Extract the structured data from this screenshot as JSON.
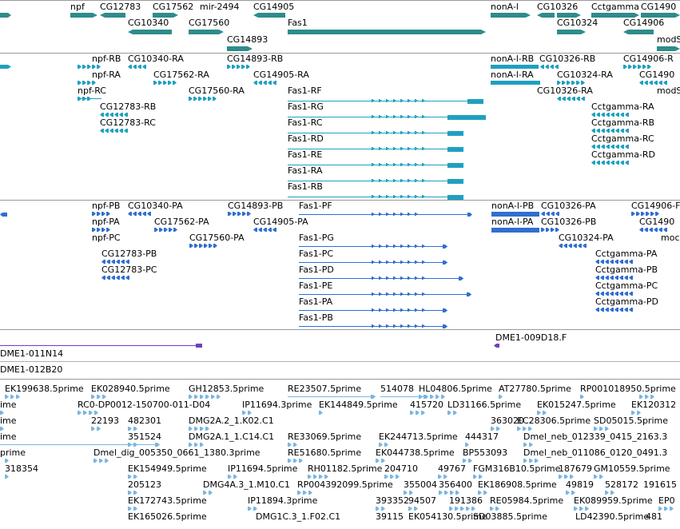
{
  "colors": {
    "gene": "#2e8c8a",
    "transcript_rna": "#1fa0c0",
    "protein": "#2f6fd0",
    "clone": "#7040c0",
    "est": "#7ab6e2",
    "separator": "#9a9a9a"
  },
  "gene_track": {
    "labels": [
      "npf",
      "CG12783",
      "CG17562",
      "mir-2494",
      "CG14905",
      "CG10340",
      "CG17560",
      "CG14893",
      "Fas1",
      "nonA-l",
      "CG10326",
      "Cctgamma",
      "CG1490",
      "CG10324",
      "CG14906",
      "modS"
    ]
  },
  "transcript_track": {
    "labels": [
      "npf-RB",
      "CG10340-RA",
      "CG14893-RB",
      "npf-RA",
      "CG17562-RA",
      "CG14905-RA",
      "npf-RC",
      "CG17560-RA",
      "CG12783-RB",
      "CG12783-RC",
      "Fas1-RF",
      "Fas1-RG",
      "Fas1-RC",
      "Fas1-RD",
      "Fas1-RE",
      "Fas1-RA",
      "Fas1-RB",
      "nonA-l-RB",
      "CG10326-RB",
      "CG14906-R",
      "nonA-l-RA",
      "CG10324-RA",
      "CG1490",
      "CG10326-RA",
      "modS",
      "Cctgamma-RA",
      "Cctgamma-RB",
      "Cctgamma-RC",
      "Cctgamma-RD"
    ]
  },
  "protein_track": {
    "labels": [
      "npf-PB",
      "CG10340-PA",
      "CG14893-PB",
      "Fas1-PF",
      "npf-PA",
      "CG17562-PA",
      "CG14905-PA",
      "npf-PC",
      "CG17560-PA",
      "CG12783-PB",
      "CG12783-PC",
      "Fas1-PG",
      "Fas1-PC",
      "Fas1-PD",
      "Fas1-PE",
      "Fas1-PA",
      "Fas1-PB",
      "nonA-l-PB",
      "CG10326-PA",
      "CG14906-F",
      "nonA-l-PA",
      "CG10326-PB",
      "CG1490",
      "CG10324-PA",
      "moc",
      "Cctgamma-PA",
      "Cctgamma-PB",
      "Cctgamma-PC",
      "Cctgamma-PD"
    ]
  },
  "clone_track": {
    "labels": [
      "DME1-011N14",
      "DME1-009D18.F",
      "DME1-012B20"
    ]
  },
  "est_track": {
    "labels": [
      "EK199638.5prime",
      "EK028940.5prime",
      "GH12853.5prime",
      "RE23507.5prime",
      "514078",
      "HL04806.5prime",
      "AT27780.5prime",
      "RP001018950.5prime",
      "ime",
      "RC0-DP0012-150700-011-D04",
      "IP11694.3prime",
      "EK144849.5prime",
      "415720",
      "LD31166.5prime",
      "EK015247.5prime",
      "EK120312",
      "ime",
      "22193",
      "482301",
      "DMG2A.2_1.K02.C1",
      "363020",
      "EC28306.5prime",
      "SD05015.5prime",
      "ime",
      "351524",
      "DMG2A.1_1.C14.C1",
      "RE33069.5prime",
      "EK244713.5prime",
      "444317",
      "Dmel_neb_012339_0415_2163.3",
      "prime",
      "Dmel_dig_005350_0661_1380.3prime",
      "RE51680.5prime",
      "EK044738.5prime",
      "BP553093",
      "Dmel_neb_011086_0120_0491.3",
      "318354",
      "EK154949.5prime",
      "IP11694.5prime",
      "RH01182.5prime",
      "204710",
      "49767",
      "FGM316B10.5prime",
      "187679",
      "GM10559.5prime",
      "205123",
      "DMG4A.3_1.M10.C1",
      "RP004392099.5prime",
      "355004",
      "356400",
      "EK186908.5prime",
      "49819",
      "528172",
      "191615",
      "EK172743.5prime",
      "IP11894.3prime",
      "393352",
      "94507",
      "191386",
      "RE05984.5prime",
      "EK089959.5prime",
      "EP0",
      "EK165026.5prime",
      "DMG1C.3_1.F02.C1",
      "39115",
      "EK054130.5prime",
      "SD03885.5prime",
      "LD42390.5prime",
      "481"
    ]
  }
}
